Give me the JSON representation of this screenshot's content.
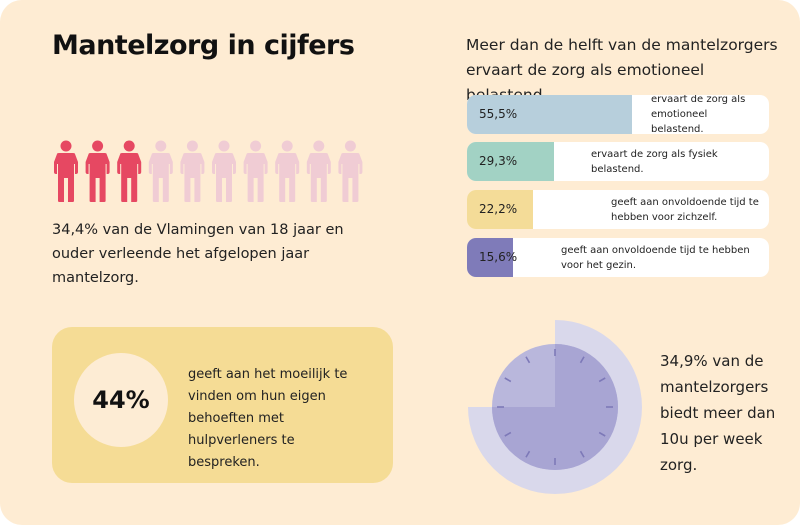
{
  "title": "Mantelzorg in cijfers",
  "subtitle": "Meer dan de helft van de mantelzorgers ervaart de zorg als emotioneel belastend.",
  "people": {
    "highlighted": 3,
    "total": 10,
    "highlight_color": "#e64862",
    "base_color": "#f0ccd4",
    "text": "34,4% van de Vlamingen van 18 jaar en ouder verleende het afgelopen jaar mantelzorg."
  },
  "chart_data": {
    "type": "bar",
    "orientation": "horizontal",
    "xlim": [
      0,
      100
    ],
    "categories": [
      "ervaart de zorg als emotioneel belastend.",
      "ervaart de zorg als fysiek belastend.",
      "geeft aan onvoldoende tijd te hebben voor zichzelf.",
      "geeft aan onvoldoende tijd te hebben voor het gezin."
    ],
    "values": [
      55.5,
      29.3,
      22.2,
      15.6
    ],
    "value_labels": [
      "55,5%",
      "29,3%",
      "22,2%",
      "15,6%"
    ],
    "colors": [
      "#b7cfdc",
      "#a2d2c4",
      "#f4dc98",
      "#7f7bb9"
    ]
  },
  "box": {
    "value": "44%",
    "text": "geeft aan het moeilijk te vinden om hun eigen behoeften met hulpverleners te bespreken.",
    "color": "#f5dc95"
  },
  "clock": {
    "fraction": 0.75,
    "text": "34,9% van de mantelzorgers biedt meer dan 10u per week zorg."
  }
}
